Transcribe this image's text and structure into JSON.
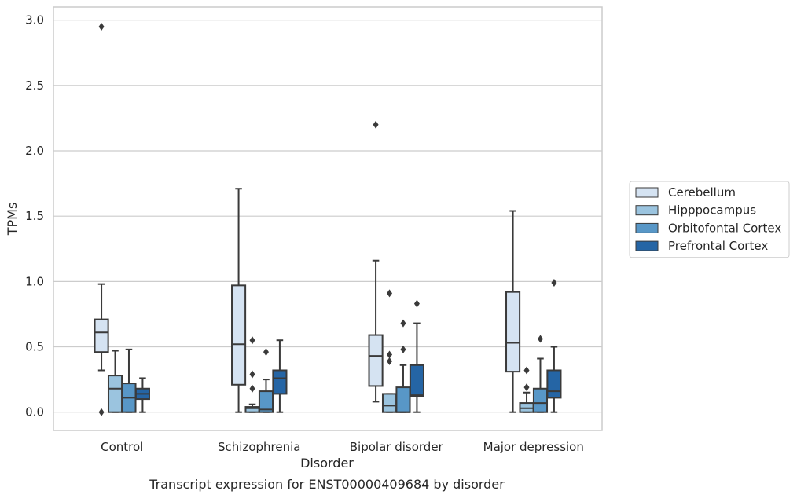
{
  "chart_data": {
    "type": "box",
    "title": "",
    "caption": "Transcript expression for ENST00000409684 by disorder",
    "xlabel": "Disorder",
    "ylabel": "TPMs",
    "ylim": [
      -0.14,
      3.1
    ],
    "yticks": [
      0.0,
      0.5,
      1.0,
      1.5,
      2.0,
      2.5,
      3.0
    ],
    "ytick_labels": [
      "0.0",
      "0.5",
      "1.0",
      "1.5",
      "2.0",
      "2.5",
      "3.0"
    ],
    "grid": "horizontal",
    "legend_position": "right",
    "categories": [
      "Control",
      "Schizophrenia",
      "Bipolar disorder",
      "Major depression"
    ],
    "series": [
      {
        "name": "Cerebellum",
        "color": "#d5e3f2",
        "boxes": [
          {
            "whislo": 0.32,
            "q1": 0.46,
            "med": 0.61,
            "q3": 0.71,
            "whishi": 0.98,
            "fliers": [
              2.95,
              0.0
            ]
          },
          {
            "whislo": 0.0,
            "q1": 0.21,
            "med": 0.52,
            "q3": 0.97,
            "whishi": 1.71,
            "fliers": []
          },
          {
            "whislo": 0.08,
            "q1": 0.2,
            "med": 0.43,
            "q3": 0.59,
            "whishi": 1.16,
            "fliers": [
              2.2
            ]
          },
          {
            "whislo": 0.0,
            "q1": 0.31,
            "med": 0.53,
            "q3": 0.92,
            "whishi": 1.54,
            "fliers": []
          }
        ]
      },
      {
        "name": "Hipppocampus",
        "color": "#9bc4df",
        "boxes": [
          {
            "whislo": 0.0,
            "q1": 0.0,
            "med": 0.18,
            "q3": 0.28,
            "whishi": 0.47,
            "fliers": []
          },
          {
            "whislo": 0.0,
            "q1": 0.0,
            "med": 0.03,
            "q3": 0.04,
            "whishi": 0.06,
            "fliers": [
              0.55,
              0.29,
              0.18
            ]
          },
          {
            "whislo": 0.0,
            "q1": 0.0,
            "med": 0.05,
            "q3": 0.14,
            "whishi": 0.14,
            "fliers": [
              0.91,
              0.44,
              0.39
            ]
          },
          {
            "whislo": 0.0,
            "q1": 0.0,
            "med": 0.03,
            "q3": 0.07,
            "whishi": 0.15,
            "fliers": [
              0.32,
              0.19
            ]
          }
        ]
      },
      {
        "name": "Orbitofontal Cortex",
        "color": "#5897c7",
        "boxes": [
          {
            "whislo": 0.0,
            "q1": 0.0,
            "med": 0.11,
            "q3": 0.22,
            "whishi": 0.48,
            "fliers": []
          },
          {
            "whislo": 0.0,
            "q1": 0.0,
            "med": 0.02,
            "q3": 0.16,
            "whishi": 0.25,
            "fliers": [
              0.46
            ]
          },
          {
            "whislo": 0.0,
            "q1": 0.0,
            "med": 0.0,
            "q3": 0.19,
            "whishi": 0.36,
            "fliers": [
              0.68,
              0.48
            ]
          },
          {
            "whislo": 0.0,
            "q1": 0.0,
            "med": 0.07,
            "q3": 0.18,
            "whishi": 0.41,
            "fliers": [
              0.56
            ]
          }
        ]
      },
      {
        "name": "Prefrontal Cortex",
        "color": "#2565a5",
        "boxes": [
          {
            "whislo": 0.0,
            "q1": 0.1,
            "med": 0.14,
            "q3": 0.18,
            "whishi": 0.26,
            "fliers": []
          },
          {
            "whislo": 0.0,
            "q1": 0.14,
            "med": 0.26,
            "q3": 0.32,
            "whishi": 0.55,
            "fliers": []
          },
          {
            "whislo": 0.0,
            "q1": 0.12,
            "med": 0.13,
            "q3": 0.36,
            "whishi": 0.68,
            "fliers": [
              0.83
            ]
          },
          {
            "whislo": 0.0,
            "q1": 0.11,
            "med": 0.16,
            "q3": 0.32,
            "whishi": 0.5,
            "fliers": [
              0.99
            ]
          }
        ]
      }
    ]
  }
}
